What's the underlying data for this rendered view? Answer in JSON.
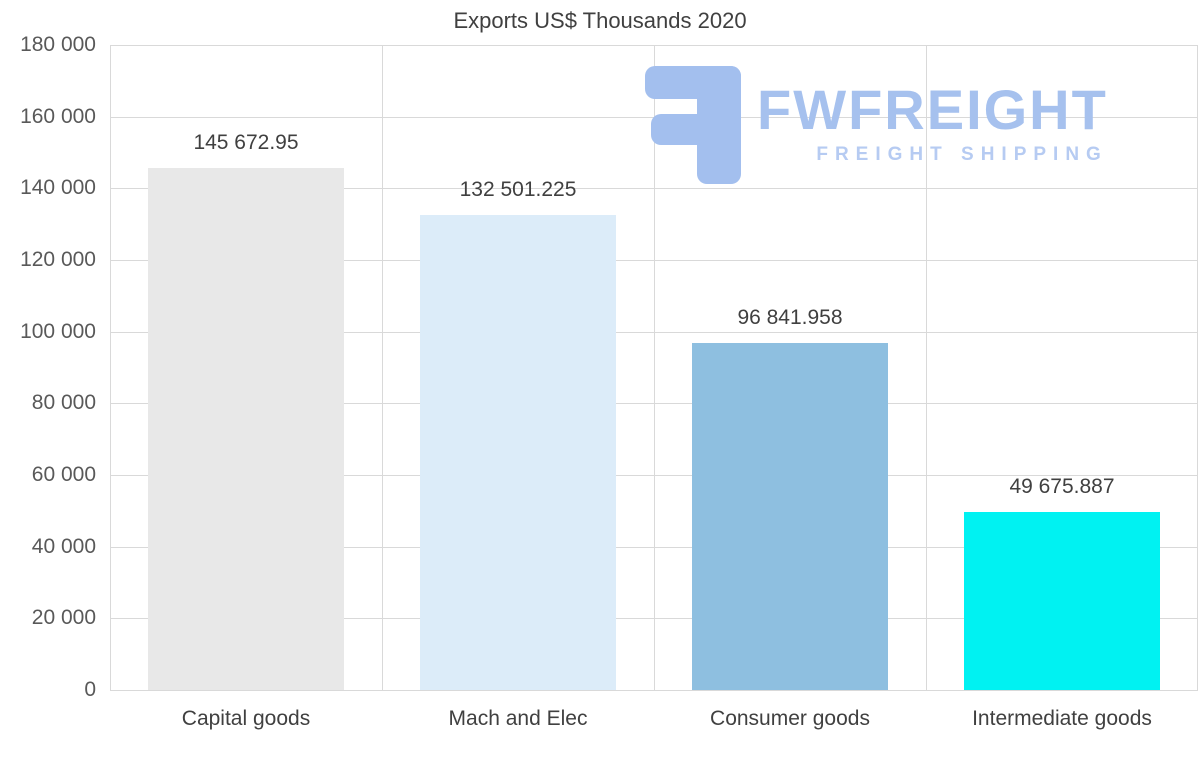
{
  "chart_data": {
    "type": "bar",
    "title": "Exports US$ Thousands 2020",
    "categories": [
      "Capital goods",
      "Mach and Elec",
      "Consumer goods",
      "Intermediate goods"
    ],
    "values": [
      145672.95,
      132501.225,
      96841.958,
      49675.887
    ],
    "value_labels": [
      "145 672.95",
      "132 501.225",
      "96 841.958",
      "49 675.887"
    ],
    "bar_colors": [
      "#e8e8e8",
      "#dcecf9",
      "#8ebfe0",
      "#00f2f2"
    ],
    "xlabel": "",
    "ylabel": "",
    "ylim": [
      0,
      180000
    ],
    "y_ticks": [
      "180 000",
      "160 000",
      "140 000",
      "120 000",
      "100 000",
      "80 000",
      "60 000",
      "40 000",
      "20 000",
      "0"
    ],
    "grid": true,
    "legend": false
  },
  "watermark": {
    "brand": "FWFREIGHT",
    "tagline": "FREIGHT SHIPPING",
    "color": "#a6c1ee"
  }
}
